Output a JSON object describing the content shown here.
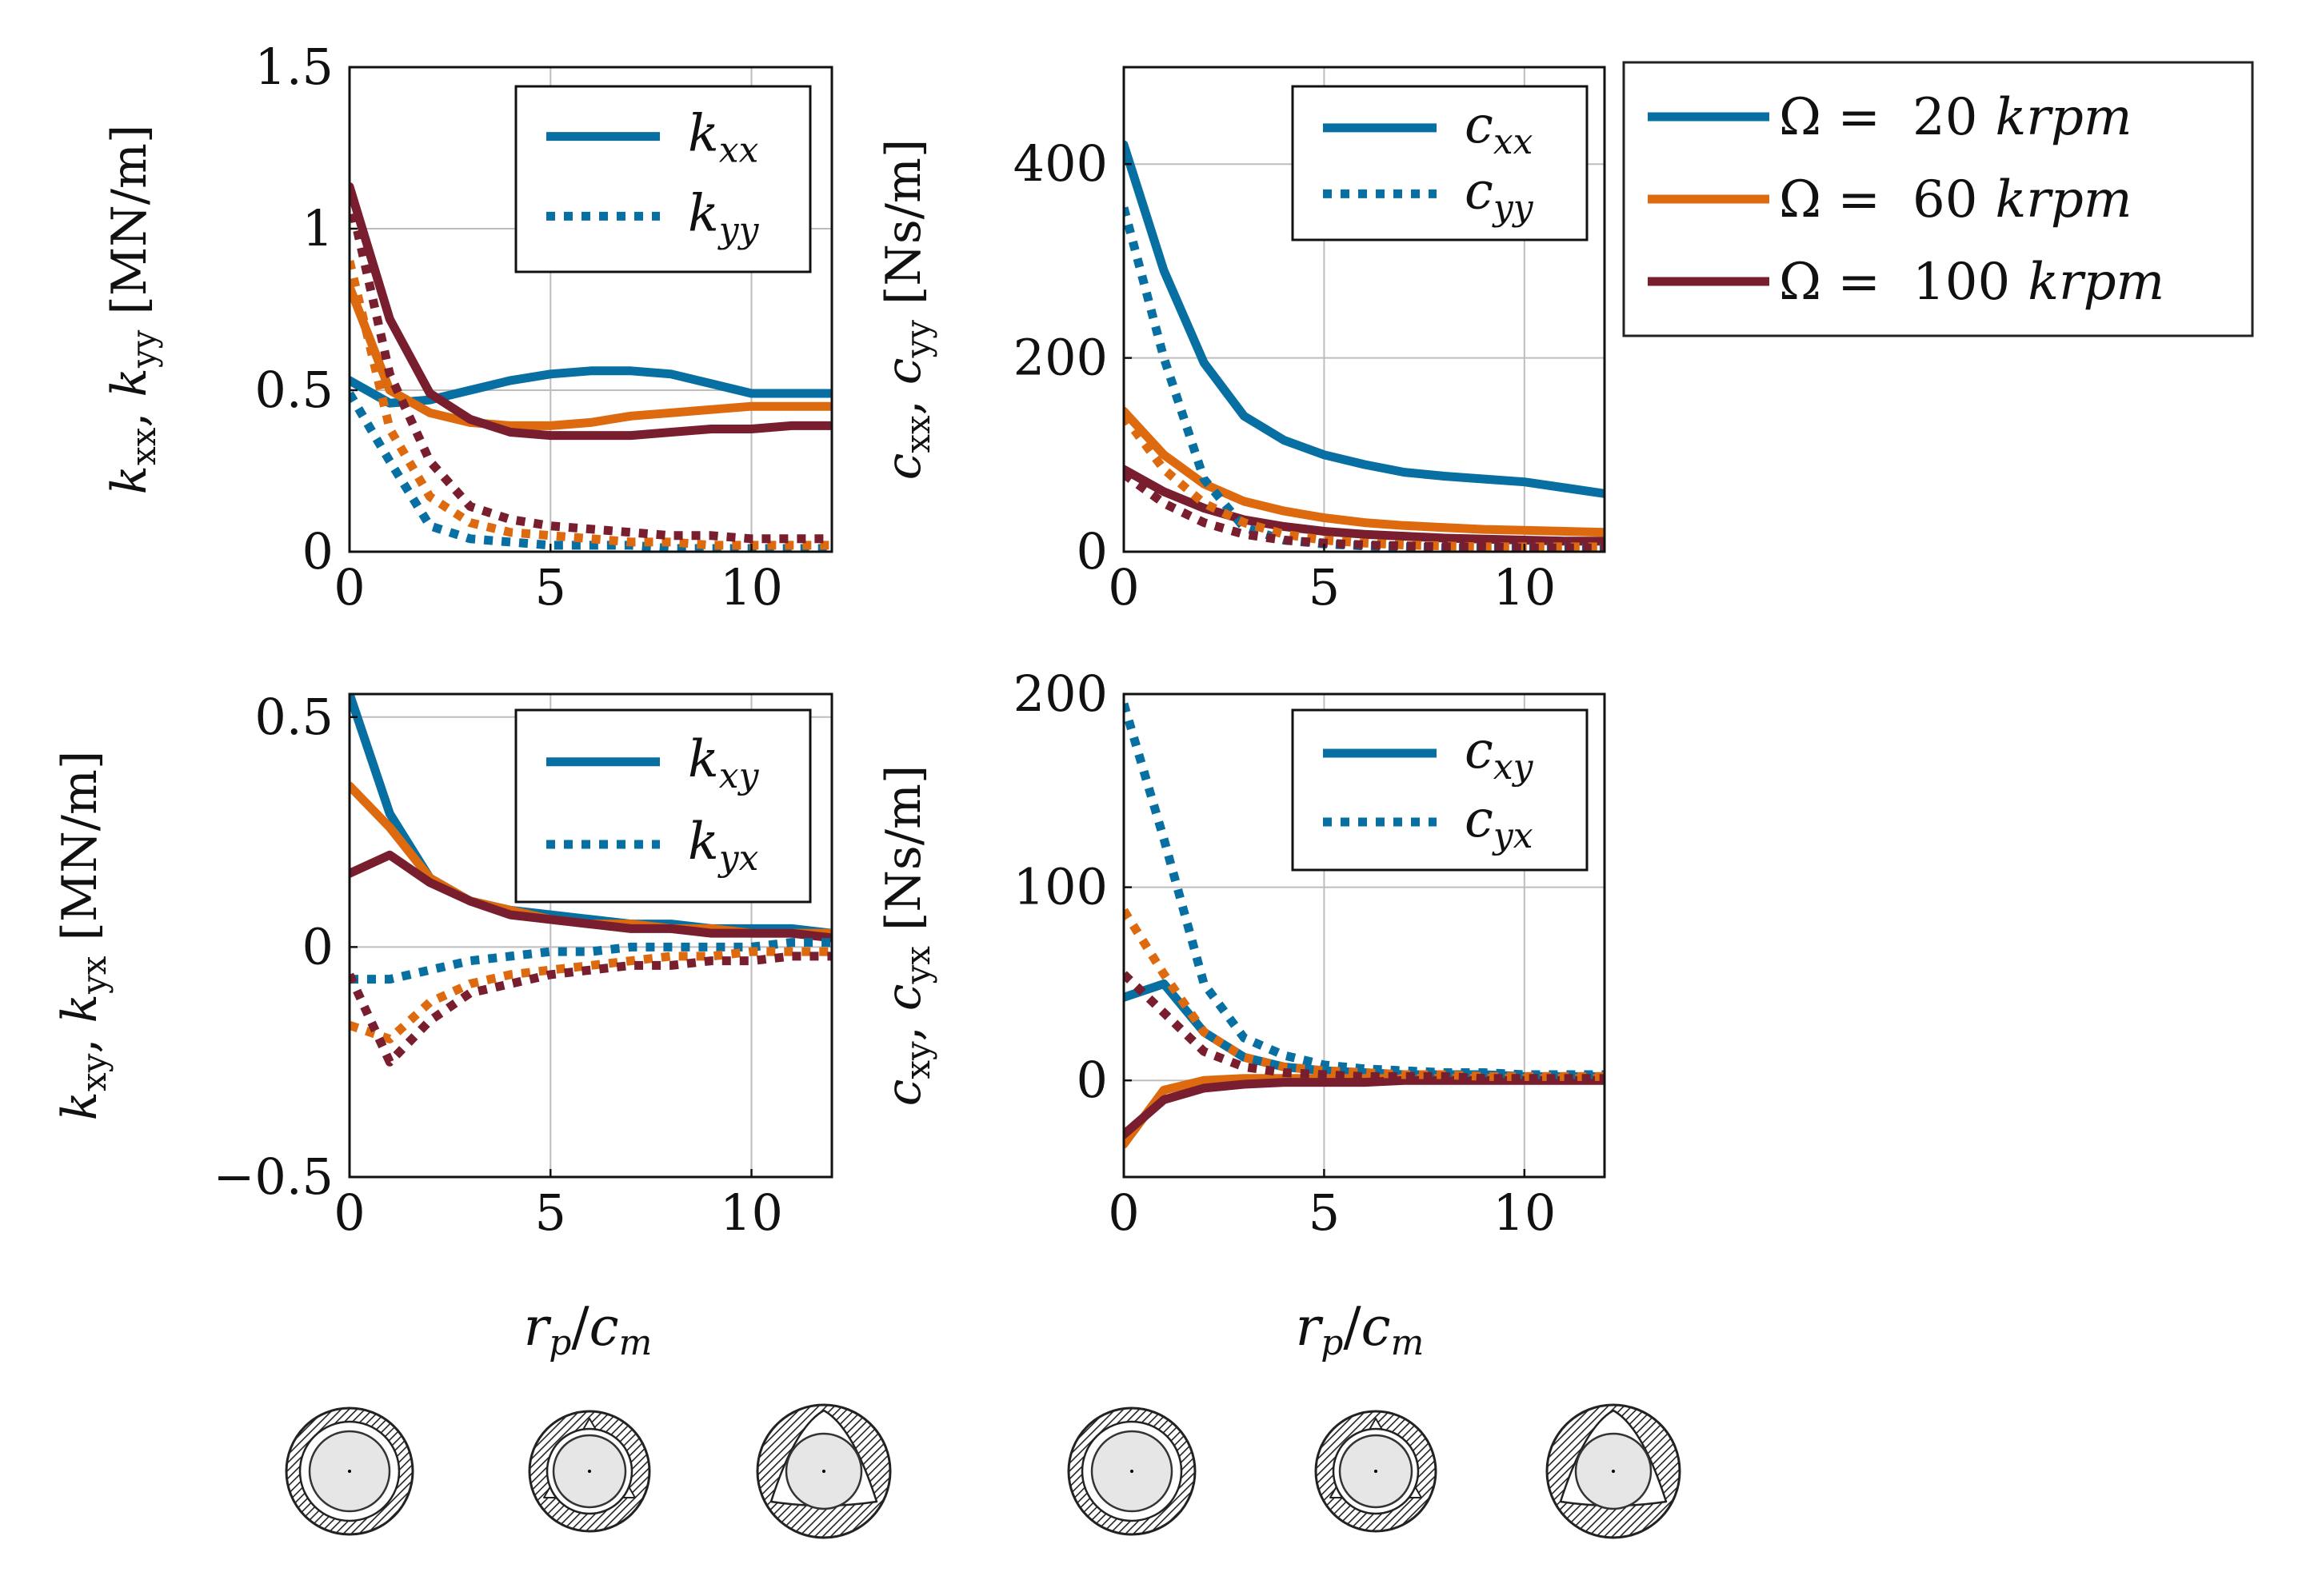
{
  "colors": {
    "rpm20": "#076fa1",
    "rpm60": "#de6a0f",
    "rpm100": "#781e2e",
    "grid": "#bdbdbd"
  },
  "legend_global": [
    {
      "key": "rpm20",
      "omega": "Ω =",
      "value": "20",
      "unit": "krpm"
    },
    {
      "key": "rpm60",
      "omega": "Ω =",
      "value": "60",
      "unit": "krpm"
    },
    {
      "key": "rpm100",
      "omega": "Ω =",
      "value": "100",
      "unit": "krpm"
    }
  ],
  "xaxis_label": {
    "base": "r",
    "sub": "p",
    "sep": "/",
    "base2": "c",
    "sub2": "m"
  },
  "icons": [
    "bearing-geometry-round",
    "bearing-geometry-mild-preload",
    "bearing-geometry-strong-preload"
  ],
  "chart_data": [
    {
      "id": "kxx_kyy",
      "type": "line",
      "ylabel": {
        "a": "k",
        "asub": "xx",
        "b": "k",
        "bsub": "yy",
        "unit": "[MN/m]"
      },
      "xlim": [
        0,
        12
      ],
      "ylim": [
        0,
        1.5
      ],
      "xticks": [
        0,
        5,
        10
      ],
      "xtick_labels": [
        "0",
        "5",
        "10"
      ],
      "yticks": [
        0,
        0.5,
        1,
        1.5
      ],
      "ytick_labels": [
        "0",
        "0.5",
        "1",
        "1.5"
      ],
      "legend": [
        {
          "style": "solid",
          "base": "k",
          "sub": "xx"
        },
        {
          "style": "dotted",
          "base": "k",
          "sub": "yy"
        }
      ],
      "x": [
        0,
        1,
        2,
        3,
        4,
        5,
        6,
        7,
        8,
        9,
        10,
        11,
        12
      ],
      "series": [
        {
          "name": "kxx 20 krpm",
          "color_key": "rpm20",
          "style": "solid",
          "values": [
            0.53,
            0.46,
            0.47,
            0.5,
            0.53,
            0.55,
            0.56,
            0.56,
            0.55,
            0.52,
            0.49,
            0.49,
            0.49
          ]
        },
        {
          "name": "kxx 60 krpm",
          "color_key": "rpm60",
          "style": "solid",
          "values": [
            0.82,
            0.5,
            0.43,
            0.4,
            0.39,
            0.39,
            0.4,
            0.42,
            0.43,
            0.44,
            0.45,
            0.45,
            0.45
          ]
        },
        {
          "name": "kxx 100 krpm",
          "color_key": "rpm100",
          "style": "solid",
          "values": [
            1.13,
            0.72,
            0.49,
            0.41,
            0.37,
            0.36,
            0.36,
            0.36,
            0.37,
            0.38,
            0.38,
            0.39,
            0.39
          ]
        },
        {
          "name": "kyy 20 krpm",
          "color_key": "rpm20",
          "style": "dotted",
          "values": [
            0.49,
            0.28,
            0.08,
            0.04,
            0.03,
            0.02,
            0.02,
            0.02,
            0.01,
            0.01,
            0.01,
            0.01,
            0.01
          ]
        },
        {
          "name": "kyy 60 krpm",
          "color_key": "rpm60",
          "style": "dotted",
          "values": [
            0.9,
            0.38,
            0.17,
            0.09,
            0.06,
            0.05,
            0.04,
            0.03,
            0.03,
            0.02,
            0.02,
            0.02,
            0.02
          ]
        },
        {
          "name": "kyy 100 krpm",
          "color_key": "rpm100",
          "style": "dotted",
          "values": [
            1.1,
            0.55,
            0.28,
            0.14,
            0.1,
            0.08,
            0.07,
            0.06,
            0.05,
            0.05,
            0.04,
            0.04,
            0.04
          ]
        }
      ]
    },
    {
      "id": "cxx_cyy",
      "type": "line",
      "ylabel": {
        "a": "c",
        "asub": "xx",
        "b": "c",
        "bsub": "yy",
        "unit": "[Ns/m]"
      },
      "xlim": [
        0,
        12
      ],
      "ylim": [
        0,
        500
      ],
      "xticks": [
        0,
        5,
        10
      ],
      "xtick_labels": [
        "0",
        "5",
        "10"
      ],
      "yticks": [
        0,
        200,
        400
      ],
      "ytick_labels": [
        "0",
        "200",
        "400"
      ],
      "legend": [
        {
          "style": "solid",
          "base": "c",
          "sub": "xx"
        },
        {
          "style": "dotted",
          "base": "c",
          "sub": "yy"
        }
      ],
      "x": [
        0,
        1,
        2,
        3,
        4,
        5,
        6,
        7,
        8,
        9,
        10,
        11,
        12
      ],
      "series": [
        {
          "name": "cxx 20 krpm",
          "color_key": "rpm20",
          "style": "solid",
          "values": [
            420,
            290,
            195,
            140,
            115,
            100,
            90,
            82,
            78,
            75,
            72,
            66,
            60
          ]
        },
        {
          "name": "cxx 60 krpm",
          "color_key": "rpm60",
          "style": "solid",
          "values": [
            145,
            100,
            70,
            52,
            42,
            35,
            30,
            27,
            25,
            23,
            22,
            21,
            20
          ]
        },
        {
          "name": "cxx 100 krpm",
          "color_key": "rpm100",
          "style": "solid",
          "values": [
            85,
            62,
            45,
            33,
            26,
            21,
            18,
            16,
            14,
            13,
            12,
            11,
            11
          ]
        },
        {
          "name": "cyy 20 krpm",
          "color_key": "rpm20",
          "style": "dotted",
          "values": [
            355,
            200,
            75,
            25,
            12,
            8,
            6,
            5,
            4,
            4,
            4,
            4,
            4
          ]
        },
        {
          "name": "cyy 60 krpm",
          "color_key": "rpm60",
          "style": "dotted",
          "values": [
            140,
            85,
            50,
            30,
            18,
            12,
            9,
            7,
            6,
            5,
            5,
            5,
            5
          ]
        },
        {
          "name": "cyy 100 krpm",
          "color_key": "rpm100",
          "style": "dotted",
          "values": [
            80,
            50,
            30,
            18,
            12,
            9,
            7,
            6,
            5,
            5,
            4,
            4,
            4
          ]
        }
      ]
    },
    {
      "id": "kxy_kyx",
      "type": "line",
      "ylabel": {
        "a": "k",
        "asub": "xy",
        "b": "k",
        "bsub": "yx",
        "unit": "[MN/m]"
      },
      "xlim": [
        0,
        12
      ],
      "ylim": [
        -0.5,
        0.55
      ],
      "xticks": [
        0,
        5,
        10
      ],
      "xtick_labels": [
        "0",
        "5",
        "10"
      ],
      "yticks": [
        -0.5,
        0,
        0.5
      ],
      "ytick_labels": [
        "−0.5",
        "0",
        "0.5"
      ],
      "legend": [
        {
          "style": "solid",
          "base": "k",
          "sub": "xy"
        },
        {
          "style": "dotted",
          "base": "k",
          "sub": "yx"
        }
      ],
      "x": [
        0,
        1,
        2,
        3,
        4,
        5,
        6,
        7,
        8,
        9,
        10,
        11,
        12
      ],
      "series": [
        {
          "name": "kxy 20 krpm",
          "color_key": "rpm20",
          "style": "solid",
          "values": [
            0.55,
            0.29,
            0.15,
            0.1,
            0.08,
            0.07,
            0.06,
            0.05,
            0.05,
            0.04,
            0.04,
            0.04,
            0.03
          ]
        },
        {
          "name": "kxy 60 krpm",
          "color_key": "rpm60",
          "style": "solid",
          "values": [
            0.35,
            0.26,
            0.15,
            0.1,
            0.08,
            0.06,
            0.05,
            0.05,
            0.04,
            0.04,
            0.03,
            0.03,
            0.03
          ]
        },
        {
          "name": "kxy 100 krpm",
          "color_key": "rpm100",
          "style": "solid",
          "values": [
            0.16,
            0.2,
            0.14,
            0.1,
            0.07,
            0.06,
            0.05,
            0.04,
            0.04,
            0.03,
            0.03,
            0.03,
            0.02
          ]
        },
        {
          "name": "kyx 20 krpm",
          "color_key": "rpm20",
          "style": "dotted",
          "values": [
            -0.07,
            -0.07,
            -0.05,
            -0.03,
            -0.02,
            -0.01,
            -0.01,
            0,
            0,
            0,
            0,
            0.01,
            0.01
          ]
        },
        {
          "name": "kyx 60 krpm",
          "color_key": "rpm60",
          "style": "dotted",
          "values": [
            -0.17,
            -0.2,
            -0.12,
            -0.08,
            -0.06,
            -0.05,
            -0.04,
            -0.03,
            -0.02,
            -0.02,
            -0.01,
            -0.01,
            -0.01
          ]
        },
        {
          "name": "kyx 100 krpm",
          "color_key": "rpm100",
          "style": "dotted",
          "values": [
            -0.06,
            -0.25,
            -0.16,
            -0.1,
            -0.08,
            -0.06,
            -0.05,
            -0.04,
            -0.04,
            -0.03,
            -0.03,
            -0.02,
            -0.02
          ]
        }
      ]
    },
    {
      "id": "cxy_cyx",
      "type": "line",
      "ylabel": {
        "a": "c",
        "asub": "xy",
        "b": "c",
        "bsub": "yx",
        "unit": "[Ns/m]"
      },
      "xlim": [
        0,
        12
      ],
      "ylim": [
        -50,
        200
      ],
      "xticks": [
        0,
        5,
        10
      ],
      "xtick_labels": [
        "0",
        "5",
        "10"
      ],
      "yticks": [
        0,
        100,
        200
      ],
      "ytick_labels": [
        "0",
        "100",
        "200"
      ],
      "legend": [
        {
          "style": "solid",
          "base": "c",
          "sub": "xy"
        },
        {
          "style": "dotted",
          "base": "c",
          "sub": "yx"
        }
      ],
      "x": [
        0,
        1,
        2,
        3,
        4,
        5,
        6,
        7,
        8,
        9,
        10,
        11,
        12
      ],
      "series": [
        {
          "name": "cxy 20 krpm",
          "color_key": "rpm20",
          "style": "solid",
          "values": [
            43,
            50,
            25,
            12,
            7,
            5,
            4,
            3,
            3,
            3,
            2,
            2,
            2
          ]
        },
        {
          "name": "cxy 60 krpm",
          "color_key": "rpm60",
          "style": "solid",
          "values": [
            -33,
            -5,
            0,
            1,
            1,
            1,
            1,
            1,
            1,
            1,
            1,
            1,
            1
          ]
        },
        {
          "name": "cxy 100 krpm",
          "color_key": "rpm100",
          "style": "solid",
          "values": [
            -28,
            -10,
            -4,
            -2,
            -1,
            -1,
            -1,
            0,
            0,
            0,
            0,
            0,
            0
          ]
        },
        {
          "name": "cyx 20 krpm",
          "color_key": "rpm20",
          "style": "dotted",
          "values": [
            195,
            125,
            50,
            22,
            13,
            8,
            6,
            5,
            4,
            4,
            3,
            3,
            3
          ]
        },
        {
          "name": "cyx 60 krpm",
          "color_key": "rpm60",
          "style": "dotted",
          "values": [
            88,
            55,
            25,
            12,
            7,
            5,
            4,
            3,
            3,
            2,
            2,
            2,
            2
          ]
        },
        {
          "name": "cyx 100 krpm",
          "color_key": "rpm100",
          "style": "dotted",
          "values": [
            55,
            35,
            15,
            7,
            4,
            3,
            2,
            2,
            2,
            1,
            1,
            1,
            1
          ]
        }
      ]
    }
  ]
}
